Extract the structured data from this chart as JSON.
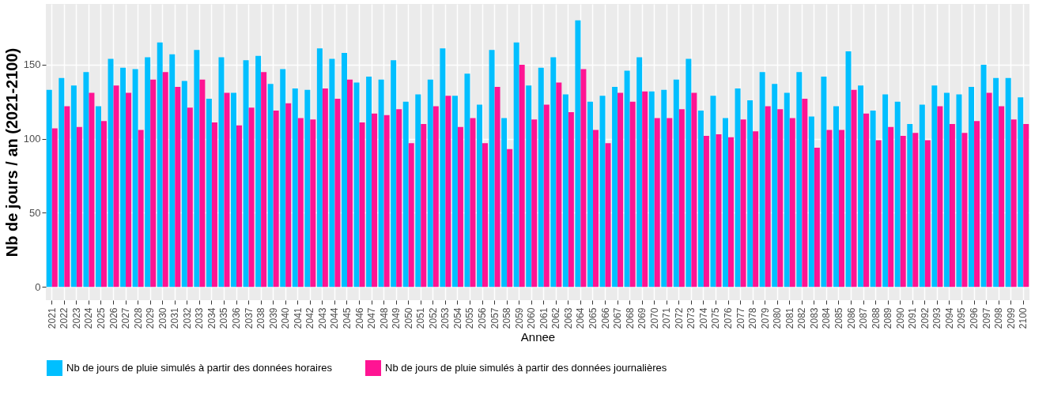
{
  "chart_data": {
    "type": "bar",
    "xlabel": "Annee",
    "ylabel": "Nb de jours / an (2021-2100)",
    "categories": [
      "2021",
      "2022",
      "2023",
      "2024",
      "2025",
      "2026",
      "2027",
      "2028",
      "2029",
      "2030",
      "2031",
      "2032",
      "2033",
      "2034",
      "2035",
      "2036",
      "2037",
      "2038",
      "2039",
      "2040",
      "2041",
      "2042",
      "2043",
      "2044",
      "2045",
      "2046",
      "2047",
      "2048",
      "2049",
      "2050",
      "2051",
      "2052",
      "2053",
      "2054",
      "2055",
      "2056",
      "2057",
      "2058",
      "2059",
      "2060",
      "2061",
      "2062",
      "2063",
      "2064",
      "2065",
      "2066",
      "2067",
      "2068",
      "2069",
      "2070",
      "2071",
      "2072",
      "2073",
      "2074",
      "2075",
      "2076",
      "2077",
      "2078",
      "2079",
      "2080",
      "2081",
      "2082",
      "2083",
      "2084",
      "2085",
      "2086",
      "2087",
      "2088",
      "2089",
      "2090",
      "2091",
      "2092",
      "2093",
      "2094",
      "2095",
      "2096",
      "2097",
      "2098",
      "2099",
      "2100"
    ],
    "series": [
      {
        "name": "Nb de jours de pluie simulés à partir des données horaires",
        "color": "#00bfff",
        "values": [
          133,
          141,
          136,
          145,
          122,
          154,
          148,
          147,
          155,
          165,
          157,
          139,
          160,
          127,
          155,
          131,
          153,
          156,
          137,
          147,
          134,
          133,
          161,
          154,
          158,
          138,
          142,
          140,
          153,
          125,
          130,
          140,
          161,
          129,
          144,
          123,
          160,
          114,
          165,
          136,
          148,
          155,
          130,
          180,
          125,
          129,
          135,
          146,
          155,
          132,
          133,
          140,
          154,
          119,
          129,
          114,
          134,
          126,
          145,
          137,
          131,
          145,
          115,
          142,
          122,
          159,
          136,
          119,
          130,
          125,
          110,
          123,
          136,
          131,
          130,
          135,
          150,
          141,
          141,
          128
        ]
      },
      {
        "name": "Nb de jours de pluie simulés à partir des données journalières",
        "color": "#ff1493",
        "values": [
          107,
          122,
          108,
          131,
          112,
          136,
          131,
          106,
          140,
          145,
          135,
          121,
          140,
          111,
          131,
          109,
          121,
          145,
          119,
          124,
          114,
          113,
          134,
          127,
          140,
          111,
          117,
          116,
          120,
          97,
          110,
          122,
          129,
          108,
          114,
          97,
          135,
          93,
          150,
          113,
          123,
          138,
          118,
          147,
          106,
          97,
          131,
          125,
          132,
          114,
          114,
          120,
          131,
          102,
          103,
          101,
          113,
          105,
          122,
          120,
          114,
          127,
          94,
          106,
          106,
          133,
          117,
          99,
          108,
          102,
          104,
          99,
          122,
          110,
          104,
          112,
          131,
          122,
          113,
          110
        ]
      }
    ],
    "ylim": [
      -9,
      191
    ],
    "yticks": [
      0,
      50,
      100,
      150
    ],
    "grid": true,
    "legend": "bottom"
  }
}
